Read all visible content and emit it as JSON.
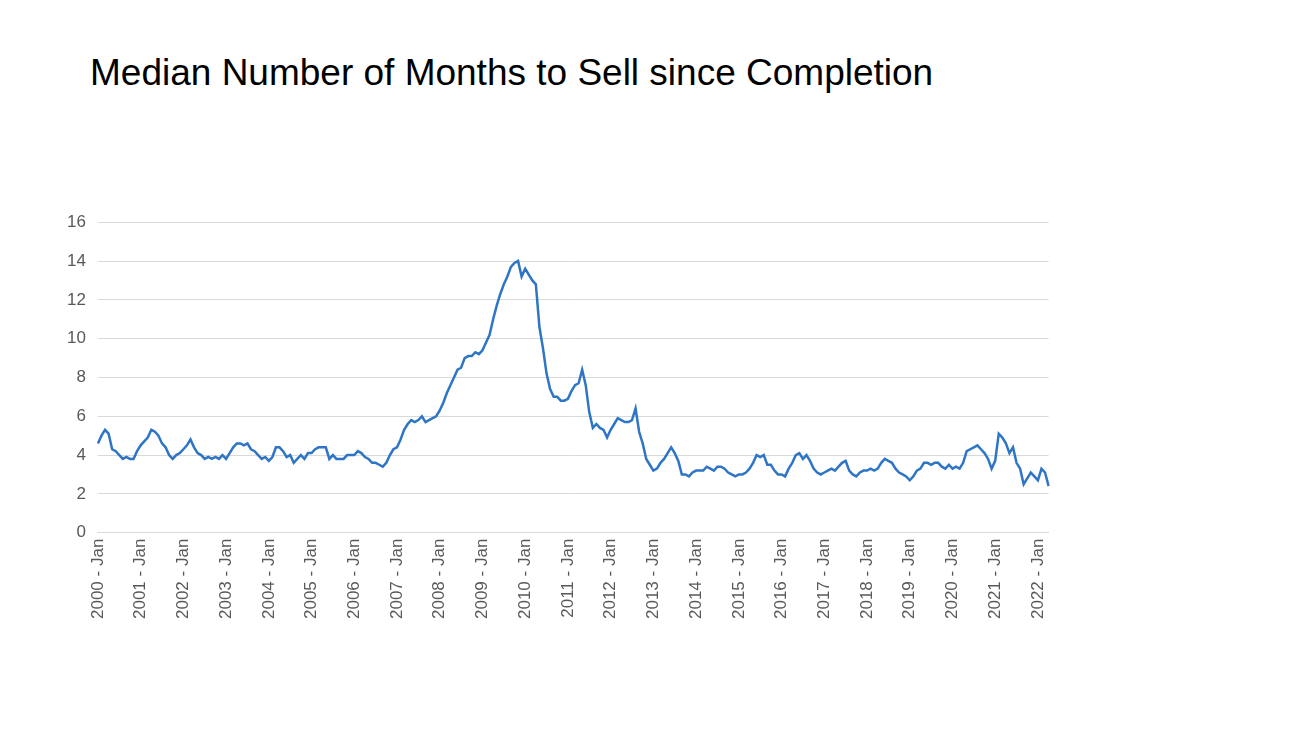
{
  "chart_data": {
    "type": "line",
    "title": "Median Number of Months to Sell since Completion",
    "categories": [
      "2000 - Jan",
      null,
      null,
      null,
      null,
      null,
      null,
      null,
      null,
      null,
      null,
      null,
      "2001 - Jan",
      null,
      null,
      null,
      null,
      null,
      null,
      null,
      null,
      null,
      null,
      null,
      "2002 - Jan",
      null,
      null,
      null,
      null,
      null,
      null,
      null,
      null,
      null,
      null,
      null,
      "2003 - Jan",
      null,
      null,
      null,
      null,
      null,
      null,
      null,
      null,
      null,
      null,
      null,
      "2004 - Jan",
      null,
      null,
      null,
      null,
      null,
      null,
      null,
      null,
      null,
      null,
      null,
      "2005 - Jan",
      null,
      null,
      null,
      null,
      null,
      null,
      null,
      null,
      null,
      null,
      null,
      "2006 - Jan",
      null,
      null,
      null,
      null,
      null,
      null,
      null,
      null,
      null,
      null,
      null,
      "2007 - Jan",
      null,
      null,
      null,
      null,
      null,
      null,
      null,
      null,
      null,
      null,
      null,
      "2008 - Jan",
      null,
      null,
      null,
      null,
      null,
      null,
      null,
      null,
      null,
      null,
      null,
      "2009 - Jan",
      null,
      null,
      null,
      null,
      null,
      null,
      null,
      null,
      null,
      null,
      null,
      "2010 - Jan",
      null,
      null,
      null,
      null,
      null,
      null,
      null,
      null,
      null,
      null,
      null,
      "2011 - Jan",
      null,
      null,
      null,
      null,
      null,
      null,
      null,
      null,
      null,
      null,
      null,
      "2012 - Jan",
      null,
      null,
      null,
      null,
      null,
      null,
      null,
      null,
      null,
      null,
      null,
      "2013 - Jan",
      null,
      null,
      null,
      null,
      null,
      null,
      null,
      null,
      null,
      null,
      null,
      "2014 - Jan",
      null,
      null,
      null,
      null,
      null,
      null,
      null,
      null,
      null,
      null,
      null,
      "2015 - Jan",
      null,
      null,
      null,
      null,
      null,
      null,
      null,
      null,
      null,
      null,
      null,
      "2016 - Jan",
      null,
      null,
      null,
      null,
      null,
      null,
      null,
      null,
      null,
      null,
      null,
      "2017 - Jan",
      null,
      null,
      null,
      null,
      null,
      null,
      null,
      null,
      null,
      null,
      null,
      "2018 - Jan",
      null,
      null,
      null,
      null,
      null,
      null,
      null,
      null,
      null,
      null,
      null,
      "2019 - Jan",
      null,
      null,
      null,
      null,
      null,
      null,
      null,
      null,
      null,
      null,
      null,
      "2020 - Jan",
      null,
      null,
      null,
      null,
      null,
      null,
      null,
      null,
      null,
      null,
      null,
      "2021 - Jan",
      null,
      null,
      null,
      null,
      null,
      null,
      null,
      null,
      null,
      null,
      null,
      "2022 - Jan",
      null,
      null,
      null
    ],
    "values": [
      4.6,
      5.0,
      5.3,
      5.1,
      4.3,
      4.2,
      4.0,
      3.8,
      3.9,
      3.8,
      3.8,
      4.2,
      4.5,
      4.7,
      4.9,
      5.3,
      5.2,
      5.0,
      4.6,
      4.4,
      4.0,
      3.8,
      4.0,
      4.1,
      4.3,
      4.5,
      4.8,
      4.4,
      4.1,
      4.0,
      3.8,
      3.9,
      3.8,
      3.9,
      3.8,
      4.0,
      3.8,
      4.1,
      4.4,
      4.6,
      4.6,
      4.5,
      4.6,
      4.3,
      4.2,
      4.0,
      3.8,
      3.9,
      3.7,
      3.9,
      4.4,
      4.4,
      4.2,
      3.9,
      4.0,
      3.6,
      3.8,
      4.0,
      3.8,
      4.1,
      4.1,
      4.3,
      4.4,
      4.4,
      4.4,
      3.8,
      4.0,
      3.8,
      3.8,
      3.8,
      4.0,
      4.0,
      4.0,
      4.2,
      4.1,
      3.9,
      3.8,
      3.6,
      3.6,
      3.5,
      3.4,
      3.6,
      4.0,
      4.3,
      4.4,
      4.8,
      5.3,
      5.6,
      5.8,
      5.7,
      5.8,
      6.0,
      5.7,
      5.8,
      5.9,
      6.0,
      6.3,
      6.7,
      7.2,
      7.6,
      8.0,
      8.4,
      8.5,
      9.0,
      9.1,
      9.1,
      9.3,
      9.2,
      9.4,
      9.8,
      10.2,
      11.0,
      11.7,
      12.3,
      12.8,
      13.2,
      13.7,
      13.9,
      14.0,
      13.2,
      13.6,
      13.3,
      13.0,
      12.8,
      10.6,
      9.5,
      8.2,
      7.4,
      7.0,
      7.0,
      6.8,
      6.8,
      6.9,
      7.3,
      7.6,
      7.7,
      8.4,
      7.6,
      6.2,
      5.4,
      5.6,
      5.4,
      5.3,
      4.9,
      5.3,
      5.6,
      5.9,
      5.8,
      5.7,
      5.7,
      5.8,
      6.4,
      5.2,
      4.6,
      3.8,
      3.5,
      3.2,
      3.3,
      3.6,
      3.8,
      4.1,
      4.4,
      4.1,
      3.7,
      3.0,
      3.0,
      2.9,
      3.1,
      3.2,
      3.2,
      3.2,
      3.4,
      3.3,
      3.2,
      3.4,
      3.4,
      3.3,
      3.1,
      3.0,
      2.9,
      3.0,
      3.0,
      3.1,
      3.3,
      3.6,
      4.0,
      3.9,
      4.0,
      3.5,
      3.5,
      3.2,
      3.0,
      3.0,
      2.9,
      3.3,
      3.6,
      4.0,
      4.1,
      3.8,
      4.0,
      3.7,
      3.3,
      3.1,
      3.0,
      3.1,
      3.2,
      3.3,
      3.2,
      3.4,
      3.6,
      3.7,
      3.2,
      3.0,
      2.9,
      3.1,
      3.2,
      3.2,
      3.3,
      3.2,
      3.3,
      3.6,
      3.8,
      3.7,
      3.6,
      3.3,
      3.1,
      3.0,
      2.9,
      2.7,
      2.9,
      3.2,
      3.3,
      3.6,
      3.6,
      3.5,
      3.6,
      3.6,
      3.4,
      3.3,
      3.5,
      3.3,
      3.4,
      3.3,
      3.6,
      4.2,
      4.3,
      4.4,
      4.5,
      4.3,
      4.1,
      3.8,
      3.3,
      3.7,
      5.1,
      4.9,
      4.6,
      4.1,
      4.4,
      3.6,
      3.3,
      2.5,
      2.8,
      3.1,
      2.9,
      2.7,
      3.3,
      3.1,
      2.4
    ],
    "color": "#2e75c6",
    "ylim": [
      0,
      16
    ],
    "yticks": [
      0,
      2,
      4,
      6,
      8,
      10,
      12,
      14,
      16
    ],
    "grid": true
  }
}
